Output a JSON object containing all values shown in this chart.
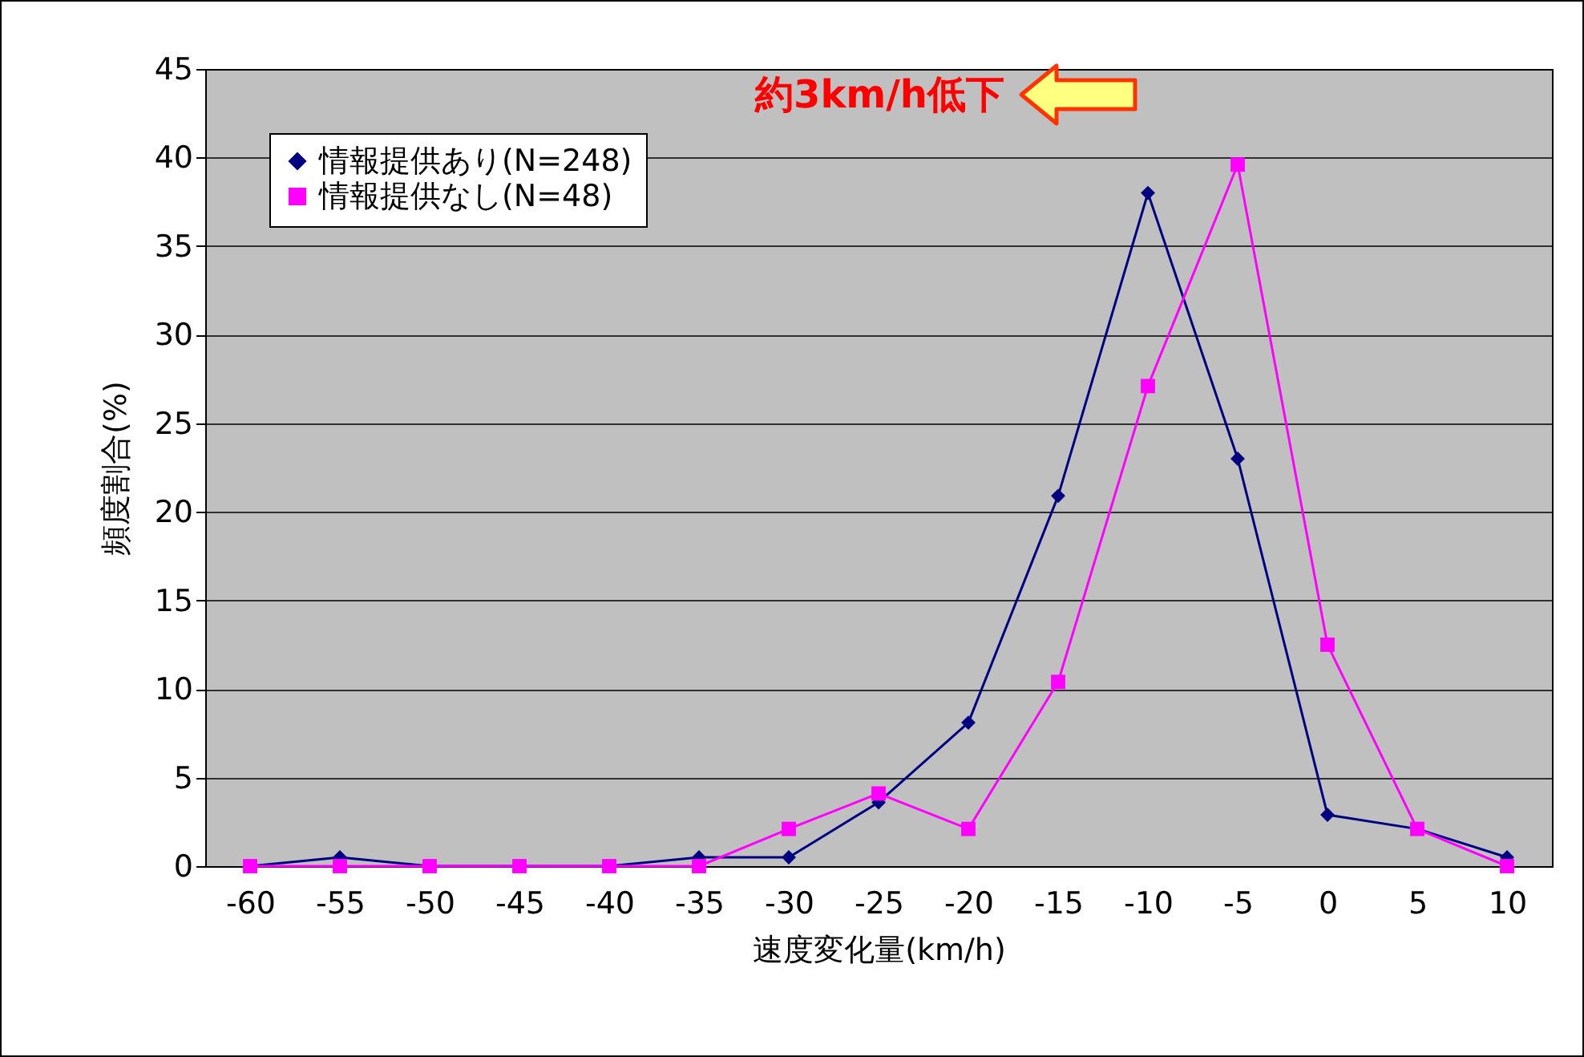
{
  "chart_data": {
    "type": "line",
    "xlabel": "速度変化量(km/h)",
    "ylabel": "頻度割合(%)",
    "categories": [
      "-60",
      "-55",
      "-50",
      "-45",
      "-40",
      "-35",
      "-30",
      "-25",
      "-20",
      "-15",
      "-10",
      "-5",
      "0",
      "5",
      "10"
    ],
    "series": [
      {
        "name": "情報提供あり(N=248)",
        "color": "#000080",
        "marker": "diamond",
        "values": [
          0,
          0.5,
          0,
          0,
          0,
          0.5,
          0.5,
          3.6,
          8.1,
          20.9,
          38,
          23,
          2.9,
          2.1,
          0.5
        ]
      },
      {
        "name": "情報提供なし(N=48)",
        "color": "#ff00ff",
        "marker": "square",
        "values": [
          0,
          0,
          0,
          0,
          0,
          0,
          2.1,
          4.1,
          2.1,
          10.4,
          27.1,
          39.6,
          12.5,
          2.1,
          0
        ]
      }
    ],
    "ylim": [
      0,
      45
    ],
    "yticks": [
      0,
      5,
      10,
      15,
      20,
      25,
      30,
      35,
      40,
      45
    ],
    "grid": "y",
    "legend": "top left",
    "line_style": "solid",
    "annotations": [
      "約3km/h低下"
    ]
  }
}
